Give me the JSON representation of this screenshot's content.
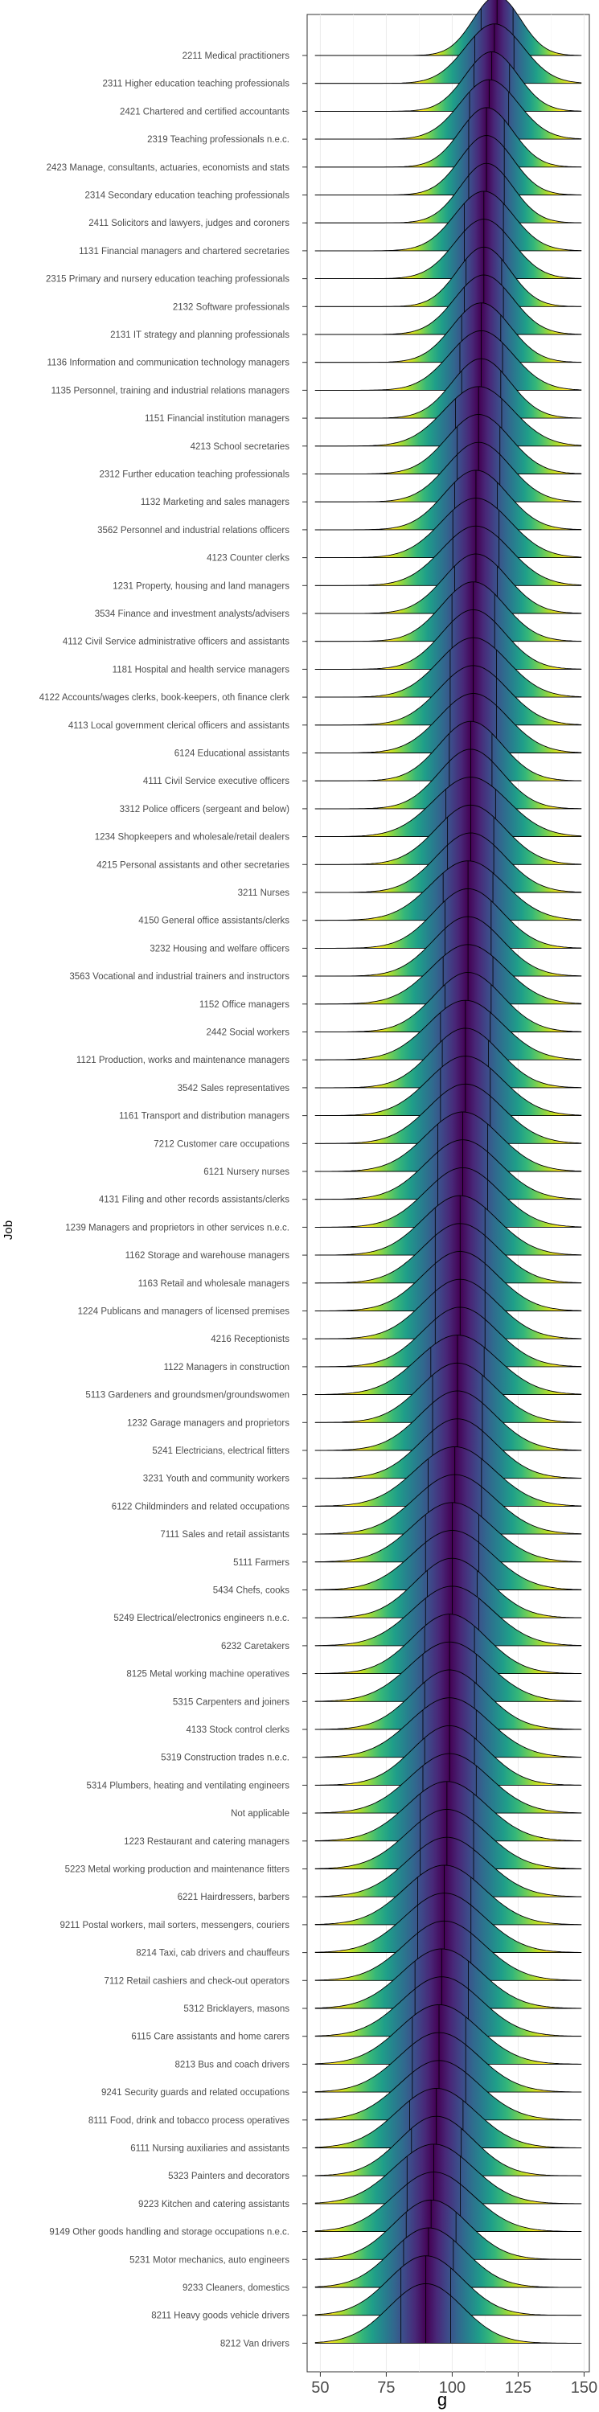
{
  "chart_data": {
    "type": "ridgeline",
    "xlabel": "g",
    "ylabel": "Job",
    "xlim": [
      45,
      152
    ],
    "xticks": [
      50,
      75,
      100,
      125,
      150
    ],
    "grid": true,
    "legend": "none",
    "colormap": "viridis",
    "palette": [
      "#440154",
      "#482878",
      "#3e4989",
      "#31688e",
      "#26828e",
      "#1f9e89",
      "#35b779",
      "#6ece58",
      "#b5de2b",
      "#fde725"
    ],
    "outline_color": "#000000",
    "gap_color": "#ffffff",
    "categories": [
      "2211 Medical practitioners",
      "2311 Higher education teaching professionals",
      "2421 Chartered and certified accountants",
      "2319 Teaching professionals n.e.c.",
      "2423 Manage, consultants, actuaries, economists and stats",
      "2314 Secondary education teaching  professionals",
      "2411 Solicitors and lawyers, judges and coroners",
      "1131 Financial managers and chartered secretaries",
      "2315 Primary and nursery education teaching professionals",
      "2132 Software professionals",
      "2131 IT strategy and planning professionals",
      "1136 Information and communication technology managers",
      "1135 Personnel, training and industrial relations managers",
      "1151 Financial institution managers",
      "4213 School secretaries",
      "2312 Further education teaching professionals",
      "1132 Marketing and sales managers",
      "3562 Personnel and industrial relations officers",
      "4123 Counter clerks",
      "1231 Property, housing and land managers",
      "3534 Finance and investment analysts/advisers",
      "4112 Civil Service administrative officers and assistants",
      "1181 Hospital and health service managers",
      "4122 Accounts/wages clerks, book-keepers, oth finance clerk",
      "4113 Local government clerical officers and assistants",
      "6124 Educational assistants",
      "4111 Civil Service executive officers",
      "3312 Police officers (sergeant and below)",
      "1234 Shopkeepers and wholesale/retail dealers",
      "4215 Personal assistants and other secretaries",
      "3211 Nurses",
      "4150 General office assistants/clerks",
      "3232 Housing and welfare officers",
      "3563 Vocational and industrial trainers and instructors",
      "1152 Office managers",
      "2442 Social workers",
      "1121 Production, works and maintenance managers",
      "3542 Sales representatives",
      "1161 Transport and distribution managers",
      "7212 Customer care occupations",
      "6121 Nursery nurses",
      "4131 Filing and other records assistants/clerks",
      "1239 Managers and proprietors in other services n.e.c.",
      "1162 Storage and warehouse managers",
      "1163 Retail and wholesale managers",
      "1224 Publicans and managers of licensed premises",
      "4216 Receptionists",
      "1122 Managers in construction",
      "5113 Gardeners and groundsmen/groundswomen",
      "1232 Garage managers and proprietors",
      "5241 Electricians, electrical fitters",
      "3231 Youth and community workers",
      "6122 Childminders and related occupations",
      "7111 Sales and retail assistants",
      "5111 Farmers",
      "5434 Chefs, cooks",
      "5249 Electrical/electronics engineers n.e.c.",
      "6232 Caretakers",
      "8125 Metal working machine operatives",
      "5315 Carpenters and joiners",
      "4133 Stock control clerks",
      "5319 Construction trades n.e.c.",
      "5314 Plumbers, heating and ventilating engineers",
      "Not applicable",
      "1223 Restaurant and catering managers",
      "5223 Metal working production and maintenance fitters",
      "6221 Hairdressers, barbers",
      "9211 Postal workers, mail sorters, messengers, couriers",
      "8214 Taxi, cab drivers and chauffeurs",
      "7112 Retail cashiers and check-out operators",
      "5312 Bricklayers, masons",
      "6115 Care assistants and home carers",
      "8213 Bus and coach drivers",
      "9241 Security guards and related occupations",
      "8111 Food, drink and tobacco process operatives",
      "6111 Nursing auxiliaries and assistants",
      "5323 Painters and decorators",
      "9223 Kitchen and catering assistants",
      "9149 Other goods handling and storage occupations n.e.c.",
      "5231 Motor mechanics, auto engineers",
      "9233 Cleaners, domestics",
      "8211 Heavy goods vehicle drivers",
      "8212 Van drivers"
    ],
    "medians": [
      117,
      116,
      115,
      114,
      113,
      113,
      113,
      112,
      112,
      112,
      112,
      111,
      111,
      111,
      110,
      110,
      110,
      109,
      109,
      109,
      109,
      108,
      108,
      108,
      108,
      108,
      107,
      107,
      107,
      107,
      107,
      106,
      106,
      106,
      106,
      106,
      105,
      105,
      105,
      105,
      104,
      104,
      104,
      103,
      103,
      103,
      103,
      103,
      102,
      102,
      102,
      102,
      101,
      101,
      100,
      100,
      100,
      100,
      99,
      99,
      99,
      99,
      99,
      99,
      98,
      98,
      98,
      97,
      97,
      97,
      96,
      96,
      95,
      95,
      95,
      94,
      94,
      93,
      93,
      92,
      91,
      90,
      90
    ],
    "spreads": [
      9,
      11,
      10,
      11,
      10,
      10,
      10,
      11,
      11,
      10,
      11,
      11,
      12,
      11,
      13,
      12,
      12,
      12,
      13,
      13,
      12,
      12,
      12,
      13,
      13,
      13,
      12,
      12,
      14,
      13,
      13,
      14,
      13,
      13,
      14,
      13,
      14,
      13,
      14,
      14,
      14,
      14,
      14,
      14,
      14,
      14,
      14,
      14,
      15,
      14,
      14,
      14,
      15,
      15,
      15,
      15,
      14,
      15,
      14,
      15,
      14,
      15,
      14,
      15,
      15,
      15,
      15,
      15,
      15,
      15,
      15,
      15,
      15,
      15,
      15,
      15,
      14,
      15,
      15,
      14,
      14,
      14,
      14
    ],
    "quartile_lines": true
  }
}
